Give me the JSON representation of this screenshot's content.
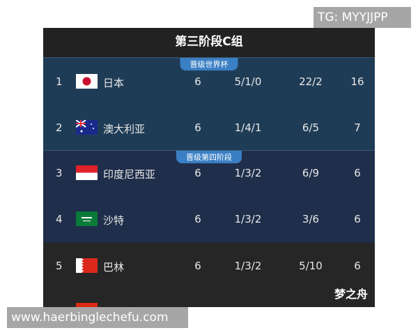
{
  "watermark_top": "TG: MYYJJPP",
  "watermark_bottom": "www.haerbinglechefu.com",
  "title": "第三阶段C组",
  "sections": [
    {
      "badge": "晋级世界杯"
    },
    {
      "badge": "晋级第四阶段"
    }
  ],
  "rows": [
    {
      "rank": "1",
      "team": "日本",
      "flag": "japan-flag",
      "played": "6",
      "wdl": "5/1/0",
      "goals": "22/2",
      "points": "16"
    },
    {
      "rank": "2",
      "team": "澳大利亚",
      "flag": "australia-flag",
      "played": "6",
      "wdl": "1/4/1",
      "goals": "6/5",
      "points": "7"
    },
    {
      "rank": "3",
      "team": "印度尼西亚",
      "flag": "indonesia-flag",
      "played": "6",
      "wdl": "1/3/2",
      "goals": "6/9",
      "points": "6"
    },
    {
      "rank": "4",
      "team": "沙特",
      "flag": "saudi-flag",
      "played": "6",
      "wdl": "1/3/2",
      "goals": "3/6",
      "points": "6"
    },
    {
      "rank": "5",
      "team": "巴林",
      "flag": "bahrain-flag",
      "played": "6",
      "wdl": "1/3/2",
      "goals": "5/10",
      "points": "6"
    }
  ],
  "signature": "梦之舟"
}
